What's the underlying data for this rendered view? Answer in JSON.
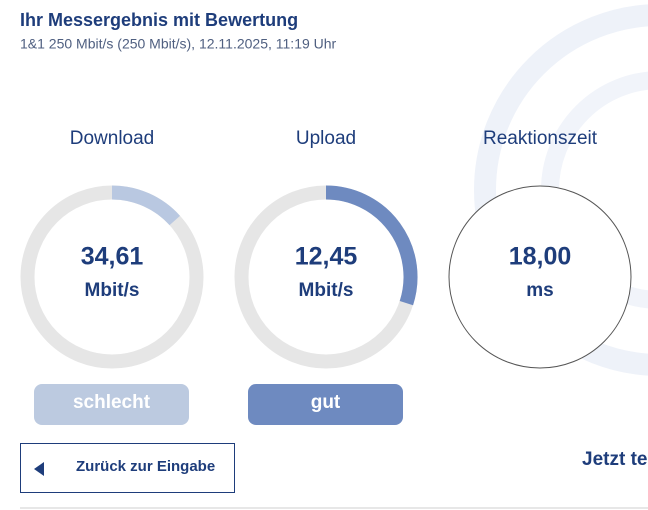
{
  "header": {
    "title": "Ihr Messergebnis mit Bewertung",
    "subtitle": "1&1 250 Mbit/s (250 Mbit/s), 12.11.2025, 11:19 Uhr"
  },
  "gauges": [
    {
      "label": "Download",
      "value": "34,61",
      "unit": "Mbit/s",
      "rating": "schlecht"
    },
    {
      "label": "Upload",
      "value": "12,45",
      "unit": "Mbit/s",
      "rating": "gut"
    },
    {
      "label": "Reaktionszeit",
      "value": "18,00",
      "unit": "ms"
    }
  ],
  "buttons": {
    "back": "Zurück zur Eingabe",
    "next": "Jetzt te"
  }
}
